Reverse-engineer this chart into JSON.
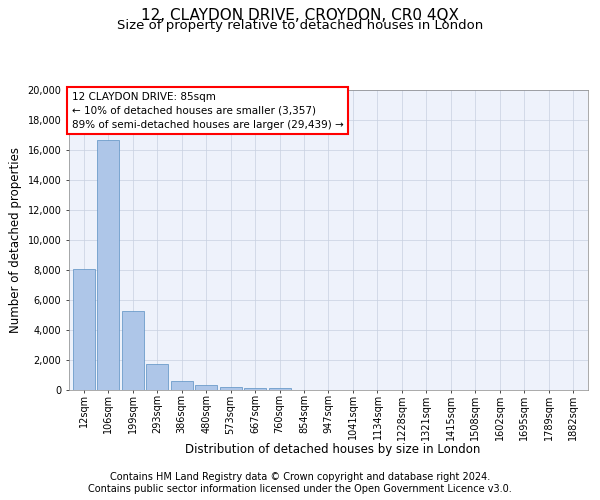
{
  "title_line1": "12, CLAYDON DRIVE, CROYDON, CR0 4QX",
  "title_line2": "Size of property relative to detached houses in London",
  "xlabel": "Distribution of detached houses by size in London",
  "ylabel": "Number of detached properties",
  "bar_values": [
    8100,
    16650,
    5300,
    1750,
    620,
    330,
    190,
    140,
    110,
    0,
    0,
    0,
    0,
    0,
    0,
    0,
    0,
    0,
    0,
    0,
    0
  ],
  "bar_labels": [
    "12sqm",
    "106sqm",
    "199sqm",
    "293sqm",
    "386sqm",
    "480sqm",
    "573sqm",
    "667sqm",
    "760sqm",
    "854sqm",
    "947sqm",
    "1041sqm",
    "1134sqm",
    "1228sqm",
    "1321sqm",
    "1415sqm",
    "1508sqm",
    "1602sqm",
    "1695sqm",
    "1789sqm",
    "1882sqm"
  ],
  "bar_color": "#aec6e8",
  "bar_edge_color": "#5a8fc2",
  "annotation_box_text": "12 CLAYDON DRIVE: 85sqm\n← 10% of detached houses are smaller (3,357)\n89% of semi-detached houses are larger (29,439) →",
  "annotation_box_color": "white",
  "annotation_box_edge_color": "red",
  "ylim": [
    0,
    20000
  ],
  "yticks": [
    0,
    2000,
    4000,
    6000,
    8000,
    10000,
    12000,
    14000,
    16000,
    18000,
    20000
  ],
  "grid_color": "#c8d0e0",
  "bg_color": "#eef2fb",
  "footer_line1": "Contains HM Land Registry data © Crown copyright and database right 2024.",
  "footer_line2": "Contains public sector information licensed under the Open Government Licence v3.0.",
  "title_fontsize": 11,
  "subtitle_fontsize": 9.5,
  "axis_label_fontsize": 8.5,
  "tick_fontsize": 7,
  "footer_fontsize": 7,
  "ann_fontsize": 7.5
}
